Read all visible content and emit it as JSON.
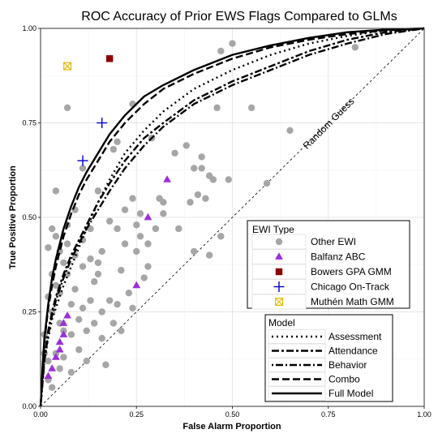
{
  "chart_data": {
    "type": "scatter",
    "title": "ROC Accuracy of Prior EWS Flags Compared to GLMs",
    "xlabel": "False Alarm Proportion",
    "ylabel": "True Positive Proportion",
    "xlim": [
      0,
      1
    ],
    "ylim": [
      0,
      1
    ],
    "x_ticks": [
      "0.00",
      "0.25",
      "0.50",
      "0.75",
      "1.00"
    ],
    "y_ticks": [
      "0.00",
      "0.25",
      "0.50",
      "0.75",
      "1.00"
    ],
    "grid": true,
    "annotation": "Random Guess",
    "ewi_legend": {
      "title": "EWI Type",
      "placement": "lower-right",
      "entries": [
        {
          "label": "Other EWI",
          "shape": "circle",
          "color": "#a6a6a6"
        },
        {
          "label": "Balfanz ABC",
          "shape": "triangle",
          "color": "#9b30d9"
        },
        {
          "label": "Bowers GPA GMM",
          "shape": "square",
          "color": "#8b0000"
        },
        {
          "label": "Chicago On-Track",
          "shape": "plus",
          "color": "#0000cc"
        },
        {
          "label": "Muthén Math GMM",
          "shape": "boxcross",
          "color": "#e6b800"
        }
      ]
    },
    "model_legend": {
      "title": "Model",
      "placement": "bottom-right",
      "entries": [
        {
          "label": "Assessment",
          "dash": "2,4"
        },
        {
          "label": "Attendance",
          "dash": "9,3,3,3"
        },
        {
          "label": "Behavior",
          "dash": "2,3,9,3"
        },
        {
          "label": "Combo",
          "dash": "9,4"
        },
        {
          "label": "Full Model",
          "dash": ""
        }
      ]
    },
    "series": [
      {
        "name": "Other EWI",
        "points": [
          [
            0.01,
            0.19
          ],
          [
            0.01,
            0.14
          ],
          [
            0.02,
            0.42
          ],
          [
            0.02,
            0.29
          ],
          [
            0.02,
            0.12
          ],
          [
            0.02,
            0.07
          ],
          [
            0.03,
            0.05
          ],
          [
            0.03,
            0.47
          ],
          [
            0.03,
            0.35
          ],
          [
            0.03,
            0.25
          ],
          [
            0.04,
            0.57
          ],
          [
            0.04,
            0.45
          ],
          [
            0.04,
            0.32
          ],
          [
            0.04,
            0.14
          ],
          [
            0.05,
            0.41
          ],
          [
            0.05,
            0.3
          ],
          [
            0.05,
            0.22
          ],
          [
            0.05,
            0.1
          ],
          [
            0.06,
            0.38
          ],
          [
            0.06,
            0.2
          ],
          [
            0.06,
            0.13
          ],
          [
            0.07,
            0.79
          ],
          [
            0.07,
            0.48
          ],
          [
            0.07,
            0.43
          ],
          [
            0.07,
            0.35
          ],
          [
            0.08,
            0.27
          ],
          [
            0.08,
            0.19
          ],
          [
            0.08,
            0.09
          ],
          [
            0.09,
            0.52
          ],
          [
            0.09,
            0.4
          ],
          [
            0.09,
            0.31
          ],
          [
            0.1,
            0.23
          ],
          [
            0.1,
            0.15
          ],
          [
            0.11,
            0.63
          ],
          [
            0.11,
            0.44
          ],
          [
            0.11,
            0.37
          ],
          [
            0.11,
            0.26
          ],
          [
            0.12,
            0.2
          ],
          [
            0.12,
            0.12
          ],
          [
            0.13,
            0.47
          ],
          [
            0.13,
            0.39
          ],
          [
            0.13,
            0.28
          ],
          [
            0.14,
            0.22
          ],
          [
            0.14,
            0.33
          ],
          [
            0.15,
            0.57
          ],
          [
            0.15,
            0.38
          ],
          [
            0.15,
            0.35
          ],
          [
            0.16,
            0.41
          ],
          [
            0.16,
            0.25
          ],
          [
            0.16,
            0.18
          ],
          [
            0.17,
            0.11
          ],
          [
            0.18,
            0.49
          ],
          [
            0.18,
            0.28
          ],
          [
            0.19,
            0.68
          ],
          [
            0.19,
            0.22
          ],
          [
            0.2,
            0.7
          ],
          [
            0.2,
            0.47
          ],
          [
            0.2,
            0.27
          ],
          [
            0.21,
            0.36
          ],
          [
            0.21,
            0.2
          ],
          [
            0.22,
            0.52
          ],
          [
            0.22,
            0.43
          ],
          [
            0.23,
            0.3
          ],
          [
            0.24,
            0.8
          ],
          [
            0.24,
            0.55
          ],
          [
            0.24,
            0.26
          ],
          [
            0.25,
            0.48
          ],
          [
            0.25,
            0.41
          ],
          [
            0.26,
            0.45
          ],
          [
            0.26,
            0.51
          ],
          [
            0.27,
            0.34
          ],
          [
            0.28,
            0.43
          ],
          [
            0.28,
            0.37
          ],
          [
            0.29,
            0.71
          ],
          [
            0.3,
            0.47
          ],
          [
            0.31,
            0.55
          ],
          [
            0.32,
            0.51
          ],
          [
            0.32,
            0.54
          ],
          [
            0.35,
            0.67
          ],
          [
            0.36,
            0.47
          ],
          [
            0.38,
            0.69
          ],
          [
            0.39,
            0.54
          ],
          [
            0.4,
            0.63
          ],
          [
            0.4,
            0.41
          ],
          [
            0.41,
            0.56
          ],
          [
            0.42,
            0.66
          ],
          [
            0.42,
            0.63
          ],
          [
            0.43,
            0.55
          ],
          [
            0.44,
            0.61
          ],
          [
            0.44,
            0.4
          ],
          [
            0.45,
            0.6
          ],
          [
            0.46,
            0.79
          ],
          [
            0.47,
            0.94
          ],
          [
            0.47,
            0.45
          ],
          [
            0.49,
            0.6
          ],
          [
            0.5,
            0.96
          ],
          [
            0.55,
            0.79
          ],
          [
            0.59,
            0.59
          ],
          [
            0.65,
            0.73
          ],
          [
            0.82,
            0.95
          ]
        ]
      },
      {
        "name": "Balfanz ABC",
        "points": [
          [
            0.02,
            0.08
          ],
          [
            0.03,
            0.1
          ],
          [
            0.04,
            0.13
          ],
          [
            0.05,
            0.15
          ],
          [
            0.05,
            0.17
          ],
          [
            0.06,
            0.19
          ],
          [
            0.06,
            0.22
          ],
          [
            0.07,
            0.24
          ],
          [
            0.25,
            0.32
          ],
          [
            0.28,
            0.5
          ],
          [
            0.33,
            0.6
          ]
        ]
      },
      {
        "name": "Bowers GPA GMM",
        "points": [
          [
            0.18,
            0.92
          ]
        ]
      },
      {
        "name": "Chicago On-Track",
        "points": [
          [
            0.11,
            0.65
          ],
          [
            0.16,
            0.75
          ]
        ]
      },
      {
        "name": "Muthén Math GMM",
        "points": [
          [
            0.07,
            0.9
          ]
        ]
      }
    ],
    "curves": [
      {
        "name": "Assessment",
        "dash": "2,4",
        "points": [
          [
            0,
            0
          ],
          [
            0.005,
            0.06
          ],
          [
            0.01,
            0.12
          ],
          [
            0.02,
            0.18
          ],
          [
            0.03,
            0.23
          ],
          [
            0.04,
            0.26
          ],
          [
            0.06,
            0.32
          ],
          [
            0.08,
            0.37
          ],
          [
            0.1,
            0.42
          ],
          [
            0.12,
            0.47
          ],
          [
            0.15,
            0.54
          ],
          [
            0.18,
            0.6
          ],
          [
            0.22,
            0.67
          ],
          [
            0.27,
            0.73
          ],
          [
            0.32,
            0.78
          ],
          [
            0.4,
            0.84
          ],
          [
            0.5,
            0.89
          ],
          [
            0.6,
            0.93
          ],
          [
            0.7,
            0.96
          ],
          [
            0.8,
            0.98
          ],
          [
            0.9,
            0.995
          ],
          [
            1,
            1
          ]
        ]
      },
      {
        "name": "Attendance",
        "dash": "9,3,3,3",
        "points": [
          [
            0,
            0
          ],
          [
            0.005,
            0.07
          ],
          [
            0.01,
            0.13
          ],
          [
            0.02,
            0.2
          ],
          [
            0.03,
            0.25
          ],
          [
            0.04,
            0.29
          ],
          [
            0.06,
            0.35
          ],
          [
            0.08,
            0.4
          ],
          [
            0.1,
            0.44
          ],
          [
            0.12,
            0.48
          ],
          [
            0.15,
            0.54
          ],
          [
            0.18,
            0.59
          ],
          [
            0.22,
            0.65
          ],
          [
            0.27,
            0.71
          ],
          [
            0.32,
            0.75
          ],
          [
            0.4,
            0.81
          ],
          [
            0.5,
            0.86
          ],
          [
            0.6,
            0.9
          ],
          [
            0.7,
            0.94
          ],
          [
            0.8,
            0.97
          ],
          [
            0.9,
            0.99
          ],
          [
            1,
            1
          ]
        ]
      },
      {
        "name": "Behavior",
        "dash": "2,3,9,3",
        "points": [
          [
            0,
            0
          ],
          [
            0.005,
            0.06
          ],
          [
            0.01,
            0.12
          ],
          [
            0.02,
            0.19
          ],
          [
            0.03,
            0.24
          ],
          [
            0.04,
            0.28
          ],
          [
            0.06,
            0.34
          ],
          [
            0.08,
            0.39
          ],
          [
            0.1,
            0.43
          ],
          [
            0.12,
            0.47
          ],
          [
            0.15,
            0.52
          ],
          [
            0.18,
            0.57
          ],
          [
            0.22,
            0.63
          ],
          [
            0.27,
            0.69
          ],
          [
            0.32,
            0.74
          ],
          [
            0.4,
            0.8
          ],
          [
            0.5,
            0.85
          ],
          [
            0.6,
            0.89
          ],
          [
            0.7,
            0.93
          ],
          [
            0.8,
            0.96
          ],
          [
            0.9,
            0.985
          ],
          [
            1,
            1
          ]
        ]
      },
      {
        "name": "Combo",
        "dash": "9,4",
        "points": [
          [
            0,
            0
          ],
          [
            0.005,
            0.09
          ],
          [
            0.01,
            0.17
          ],
          [
            0.02,
            0.26
          ],
          [
            0.03,
            0.32
          ],
          [
            0.04,
            0.37
          ],
          [
            0.06,
            0.45
          ],
          [
            0.08,
            0.51
          ],
          [
            0.1,
            0.56
          ],
          [
            0.12,
            0.6
          ],
          [
            0.15,
            0.65
          ],
          [
            0.18,
            0.7
          ],
          [
            0.22,
            0.75
          ],
          [
            0.27,
            0.8
          ],
          [
            0.32,
            0.84
          ],
          [
            0.4,
            0.88
          ],
          [
            0.5,
            0.92
          ],
          [
            0.6,
            0.95
          ],
          [
            0.7,
            0.97
          ],
          [
            0.8,
            0.985
          ],
          [
            0.9,
            0.995
          ],
          [
            1,
            1
          ]
        ]
      },
      {
        "name": "Full Model",
        "dash": "",
        "points": [
          [
            0,
            0
          ],
          [
            0.005,
            0.1
          ],
          [
            0.01,
            0.18
          ],
          [
            0.02,
            0.27
          ],
          [
            0.03,
            0.34
          ],
          [
            0.04,
            0.39
          ],
          [
            0.06,
            0.47
          ],
          [
            0.08,
            0.53
          ],
          [
            0.1,
            0.58
          ],
          [
            0.12,
            0.62
          ],
          [
            0.15,
            0.67
          ],
          [
            0.18,
            0.72
          ],
          [
            0.22,
            0.77
          ],
          [
            0.27,
            0.82
          ],
          [
            0.32,
            0.85
          ],
          [
            0.4,
            0.89
          ],
          [
            0.5,
            0.93
          ],
          [
            0.6,
            0.955
          ],
          [
            0.7,
            0.975
          ],
          [
            0.8,
            0.99
          ],
          [
            0.9,
            0.997
          ],
          [
            1,
            1
          ]
        ]
      }
    ]
  }
}
